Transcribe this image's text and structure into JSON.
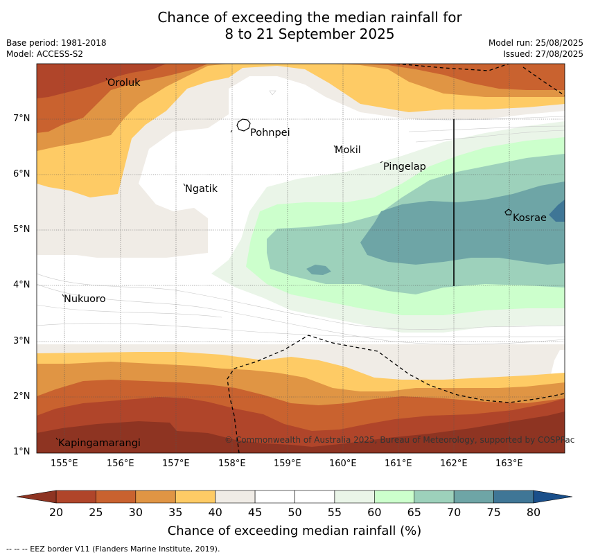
{
  "title": {
    "line1": "Chance of exceeding the median rainfall for",
    "line2": "8 to 21 September 2025"
  },
  "meta": {
    "base_period": "Base period: 1981-2018",
    "model": "Model: ACCESS-S2",
    "model_run": "Model run: 25/08/2025",
    "issued": "Issued: 27/08/2025"
  },
  "map": {
    "lat_ticks": [
      "1°N",
      "2°N",
      "3°N",
      "4°N",
      "5°N",
      "6°N",
      "7°N"
    ],
    "lon_ticks": [
      "155°E",
      "156°E",
      "157°E",
      "158°E",
      "159°E",
      "160°E",
      "161°E",
      "162°E",
      "163°E"
    ],
    "places": [
      "Oroluk",
      "Pohnpei",
      "Mokil",
      "Pingelap",
      "Ngatik",
      "Kosrae",
      "Nukuoro",
      "Kapingamarangi"
    ],
    "copyright": "© Commonwealth of Australia 2025, Bureau of Meteorology, supported by COSPPac"
  },
  "colorbar": {
    "ticks": [
      "20",
      "25",
      "30",
      "35",
      "40",
      "45",
      "50",
      "55",
      "60",
      "65",
      "70",
      "75",
      "80"
    ],
    "colors": [
      "#b0452a",
      "#c9622f",
      "#e09544",
      "#fecb65",
      "#f0ece6",
      "#ffffff",
      "#ffffff",
      "#eaf5e8",
      "#ccffcc",
      "#9dd1bb",
      "#6ea5a6",
      "#3f7696"
    ],
    "low_color": "#8e3422",
    "high_color": "#1a4f8a",
    "title": "Chance of exceeding median rainfall (%)"
  },
  "footnote": "--  --  -- EEZ border V11 (Flanders Marine Institute, 2019)."
}
